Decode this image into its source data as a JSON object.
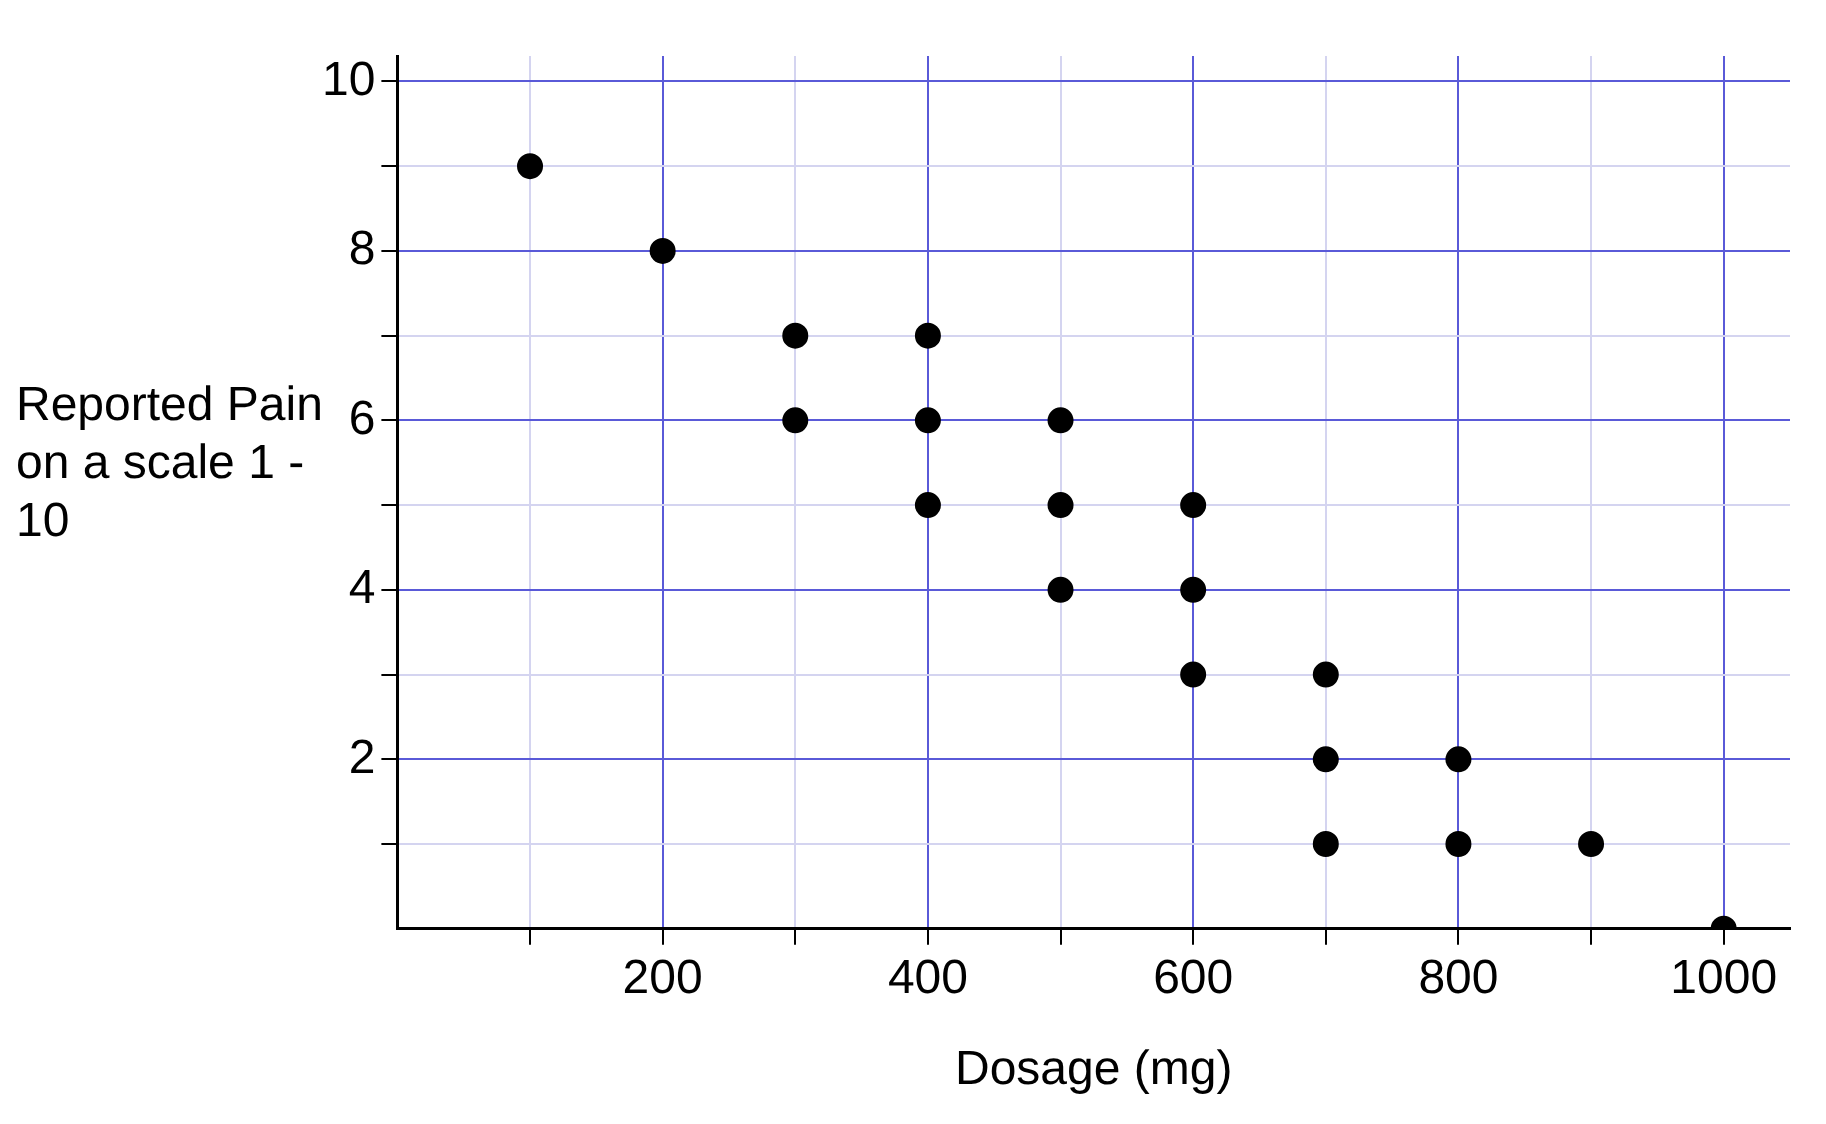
{
  "chart_data": {
    "type": "scatter",
    "xlabel": "Dosage (mg)",
    "ylabel": "Reported Pain on a scale 1 - 10",
    "x": [
      100,
      200,
      300,
      300,
      400,
      400,
      400,
      500,
      500,
      500,
      600,
      600,
      600,
      700,
      700,
      700,
      800,
      800,
      900,
      1000
    ],
    "series": [
      {
        "color": "#000000",
        "values": [
          9,
          8,
          7,
          6,
          7,
          6,
          5,
          6,
          5,
          4,
          5,
          4,
          3,
          3,
          2,
          1,
          2,
          1,
          1,
          0
        ]
      }
    ],
    "xlim": [
      0,
      1050
    ],
    "ylim": [
      0,
      10.3
    ],
    "xticks": [
      {
        "value": 100,
        "label": null
      },
      200,
      {
        "value": 300,
        "label": null
      },
      400,
      {
        "value": 500,
        "label": null
      },
      600,
      {
        "value": 700,
        "label": null
      },
      800,
      {
        "value": 900,
        "label": null
      },
      1000
    ],
    "yticks": [
      {
        "value": 1,
        "label": null
      },
      2,
      {
        "value": 3,
        "label": null
      },
      4,
      {
        "value": 5,
        "label": null
      },
      6,
      {
        "value": 7,
        "label": null
      },
      8,
      {
        "value": 9,
        "label": null
      },
      10
    ],
    "grid": true,
    "marker": "circle",
    "legend": false
  }
}
